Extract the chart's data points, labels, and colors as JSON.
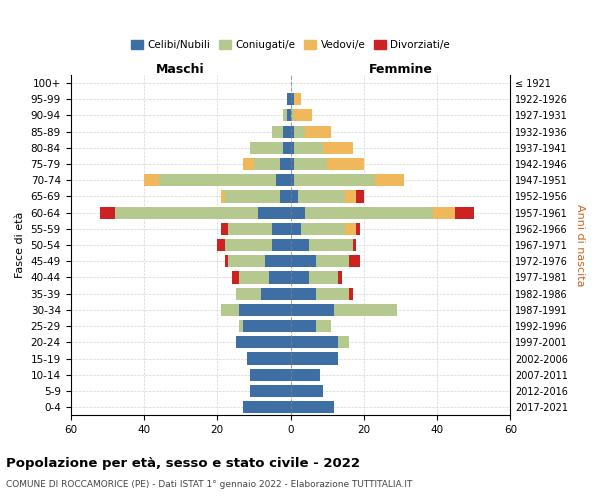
{
  "age_groups": [
    "0-4",
    "5-9",
    "10-14",
    "15-19",
    "20-24",
    "25-29",
    "30-34",
    "35-39",
    "40-44",
    "45-49",
    "50-54",
    "55-59",
    "60-64",
    "65-69",
    "70-74",
    "75-79",
    "80-84",
    "85-89",
    "90-94",
    "95-99",
    "100+"
  ],
  "birth_years": [
    "2017-2021",
    "2012-2016",
    "2007-2011",
    "2002-2006",
    "1997-2001",
    "1992-1996",
    "1987-1991",
    "1982-1986",
    "1977-1981",
    "1972-1976",
    "1967-1971",
    "1962-1966",
    "1957-1961",
    "1952-1956",
    "1947-1951",
    "1942-1946",
    "1937-1941",
    "1932-1936",
    "1927-1931",
    "1922-1926",
    "≤ 1921"
  ],
  "colors": {
    "celibe": "#3d6fa5",
    "coniugato": "#b5c98e",
    "vedovo": "#f0b85a",
    "divorziato": "#cc2222"
  },
  "maschi": {
    "celibe": [
      13,
      11,
      11,
      12,
      15,
      13,
      14,
      8,
      6,
      7,
      5,
      5,
      9,
      3,
      4,
      3,
      2,
      2,
      1,
      1,
      0
    ],
    "coniugato": [
      0,
      0,
      0,
      0,
      0,
      1,
      5,
      7,
      8,
      10,
      13,
      12,
      39,
      15,
      32,
      7,
      9,
      3,
      1,
      0,
      0
    ],
    "vedovo": [
      0,
      0,
      0,
      0,
      0,
      0,
      0,
      0,
      0,
      0,
      0,
      0,
      0,
      1,
      4,
      3,
      0,
      0,
      0,
      0,
      0
    ],
    "divorziato": [
      0,
      0,
      0,
      0,
      0,
      0,
      0,
      0,
      2,
      1,
      2,
      2,
      4,
      0,
      0,
      0,
      0,
      0,
      0,
      0,
      0
    ]
  },
  "femmine": {
    "nubile": [
      12,
      9,
      8,
      13,
      13,
      7,
      12,
      7,
      5,
      7,
      5,
      3,
      4,
      2,
      1,
      1,
      1,
      1,
      0,
      1,
      0
    ],
    "coniugata": [
      0,
      0,
      0,
      0,
      3,
      4,
      17,
      9,
      8,
      9,
      12,
      12,
      35,
      13,
      22,
      9,
      8,
      3,
      1,
      0,
      0
    ],
    "vedova": [
      0,
      0,
      0,
      0,
      0,
      0,
      0,
      0,
      0,
      0,
      0,
      3,
      6,
      3,
      8,
      10,
      8,
      7,
      5,
      2,
      0
    ],
    "divorziata": [
      0,
      0,
      0,
      0,
      0,
      0,
      0,
      1,
      1,
      3,
      1,
      1,
      5,
      2,
      0,
      0,
      0,
      0,
      0,
      0,
      0
    ]
  },
  "xlim": 60,
  "title": "Popolazione per età, sesso e stato civile - 2022",
  "subtitle": "COMUNE DI ROCCAMORICE (PE) - Dati ISTAT 1° gennaio 2022 - Elaborazione TUTTITALIA.IT",
  "ylabel": "Fasce di età",
  "ylabel_right": "Anni di nascita",
  "xlabel_maschi": "Maschi",
  "xlabel_femmine": "Femmine",
  "legend_labels": [
    "Celibi/Nubili",
    "Coniugati/e",
    "Vedovi/e",
    "Divorziati/e"
  ],
  "xticks": [
    -60,
    -40,
    -20,
    0,
    20,
    40,
    60
  ]
}
